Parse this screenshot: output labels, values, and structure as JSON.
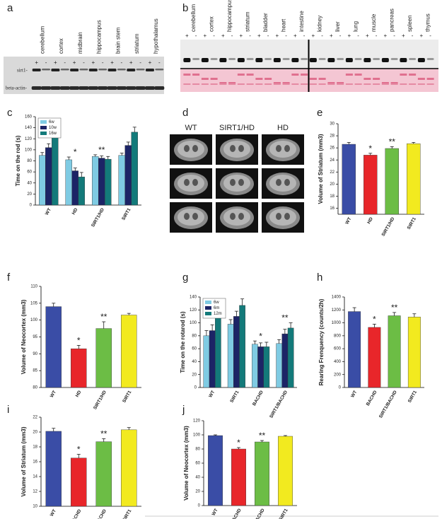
{
  "figure": {
    "a": {
      "panel": "a",
      "lanes": [
        "cerebellum",
        "cortex",
        "midbrain",
        "hippocampus",
        "brain stem",
        "striatum",
        "hypothalamus"
      ],
      "signs": [
        "+",
        "-"
      ],
      "rows": [
        "sirt1-",
        "beta-actin-"
      ]
    },
    "b": {
      "panel": "b",
      "lanes": [
        "cerebellum",
        "cortex",
        "hippocampus",
        "striatum",
        "bladder",
        "heart",
        "intestine",
        "kidney",
        "liver",
        "lung",
        "muscle",
        "pancreas",
        "spleen",
        "thymus"
      ],
      "signs": [
        "+",
        "-"
      ]
    },
    "d": {
      "panel": "d",
      "columns": [
        "WT",
        "SIRT1/HD",
        "HD"
      ]
    }
  },
  "chart_data": [
    {
      "type": "grouped-bar",
      "panel": "c",
      "ylabel": "Time on the rod (s)",
      "categories": [
        "WT",
        "HD",
        "SIRT1/HD",
        "SIRT1"
      ],
      "series": [
        {
          "name": "6w",
          "color": "#7fcbe3",
          "values": [
            90,
            82,
            88,
            90
          ],
          "errors": [
            5,
            5,
            3,
            4
          ]
        },
        {
          "name": "10w",
          "color": "#1c2466",
          "values": [
            104,
            62,
            85,
            108
          ],
          "errors": [
            7,
            5,
            4,
            6
          ]
        },
        {
          "name": "16w",
          "color": "#137a7a",
          "values": [
            132,
            51,
            83,
            132
          ],
          "errors": [
            7,
            8,
            5,
            9
          ]
        }
      ],
      "ylim": [
        0,
        160
      ],
      "yticks": [
        0,
        20,
        40,
        60,
        80,
        100,
        120,
        140,
        160
      ],
      "annotations": [
        null,
        "*",
        "**",
        null
      ],
      "legend": "upper left"
    },
    {
      "type": "bar",
      "panel": "e",
      "ylabel": "Volume of Striatum (mm3)",
      "categories": [
        "WT",
        "HD",
        "SIRT1/HD",
        "SIRT1"
      ],
      "values": [
        26.6,
        24.8,
        25.9,
        26.7
      ],
      "errors": [
        0.3,
        0.3,
        0.3,
        0.2
      ],
      "colors": [
        "#3a4da6",
        "#e8262a",
        "#6cbd45",
        "#f2ea1f"
      ],
      "ylim": [
        15,
        30
      ],
      "yticks": [
        16,
        18,
        20,
        22,
        24,
        26,
        28,
        30
      ],
      "annotations": [
        null,
        "*",
        "**",
        null
      ]
    },
    {
      "type": "bar",
      "panel": "f",
      "ylabel": "Volume of Neocortex (mm3)",
      "categories": [
        "WT",
        "HD",
        "SIRT1/HD",
        "SIRT1"
      ],
      "values": [
        104,
        91.5,
        97.5,
        101.5
      ],
      "errors": [
        1,
        1,
        2,
        0.5
      ],
      "colors": [
        "#3a4da6",
        "#e8262a",
        "#6cbd45",
        "#f2ea1f"
      ],
      "ylim": [
        80,
        110
      ],
      "yticks": [
        80,
        85,
        90,
        95,
        100,
        105,
        110
      ],
      "annotations": [
        null,
        "*",
        "**",
        null
      ]
    },
    {
      "type": "grouped-bar",
      "panel": "g",
      "ylabel": "Time on the rotarod (s)",
      "categories": [
        "WT",
        "SIRT1",
        "BACHD",
        "SIRT1/BACHD"
      ],
      "series": [
        {
          "name": "6w",
          "color": "#7fcbe3",
          "values": [
            80,
            98,
            67,
            68
          ],
          "errors": [
            8,
            7,
            5,
            6
          ]
        },
        {
          "name": "6m",
          "color": "#1c2466",
          "values": [
            88,
            110,
            63,
            83
          ],
          "errors": [
            9,
            8,
            6,
            7
          ]
        },
        {
          "name": "12m",
          "color": "#137a7a",
          "values": [
            115,
            127,
            63,
            92
          ],
          "errors": [
            10,
            10,
            7,
            8
          ]
        }
      ],
      "ylim": [
        0,
        140
      ],
      "yticks": [
        0,
        20,
        40,
        60,
        80,
        100,
        120,
        140
      ],
      "annotations": [
        null,
        null,
        "*",
        "**"
      ],
      "legend": "upper left"
    },
    {
      "type": "bar",
      "panel": "h",
      "ylabel": "Rearing Frenquency (counts/2h)",
      "categories": [
        "WT",
        "BACHD",
        "SIRT1/BACHD",
        "SIRT1"
      ],
      "values": [
        1175,
        930,
        1110,
        1090
      ],
      "errors": [
        60,
        50,
        50,
        50
      ],
      "colors": [
        "#3a4da6",
        "#e8262a",
        "#6cbd45",
        "#f2ea1f"
      ],
      "ylim": [
        0,
        1400
      ],
      "yticks": [
        0,
        200,
        400,
        600,
        800,
        1000,
        1200,
        1400
      ],
      "annotations": [
        null,
        "*",
        "**",
        null
      ]
    },
    {
      "type": "bar",
      "panel": "i",
      "ylabel": "Volume of Striatum (mm3)",
      "categories": [
        "WT",
        "BACHD",
        "SIRT1/BACHD",
        "SIRT1"
      ],
      "values": [
        20.1,
        16.5,
        18.7,
        20.3
      ],
      "errors": [
        0.4,
        0.5,
        0.4,
        0.3
      ],
      "colors": [
        "#3a4da6",
        "#e8262a",
        "#6cbd45",
        "#f2ea1f"
      ],
      "ylim": [
        10,
        22
      ],
      "yticks": [
        10,
        12,
        14,
        16,
        18,
        20,
        22
      ],
      "annotations": [
        null,
        "*",
        "**",
        null
      ]
    },
    {
      "type": "bar",
      "panel": "j",
      "ylabel": "Volume of Neocortex (mm3)",
      "categories": [
        "WT",
        "BACHD",
        "SIRT1/BACHD",
        "SIRT1"
      ],
      "values": [
        99,
        80,
        90,
        98
      ],
      "errors": [
        1,
        2,
        2,
        1
      ],
      "colors": [
        "#3a4da6",
        "#e8262a",
        "#6cbd45",
        "#f2ea1f"
      ],
      "ylim": [
        0,
        120
      ],
      "yticks": [
        0,
        20,
        40,
        60,
        80,
        100,
        120
      ],
      "annotations": [
        null,
        "*",
        "**",
        null
      ]
    }
  ]
}
